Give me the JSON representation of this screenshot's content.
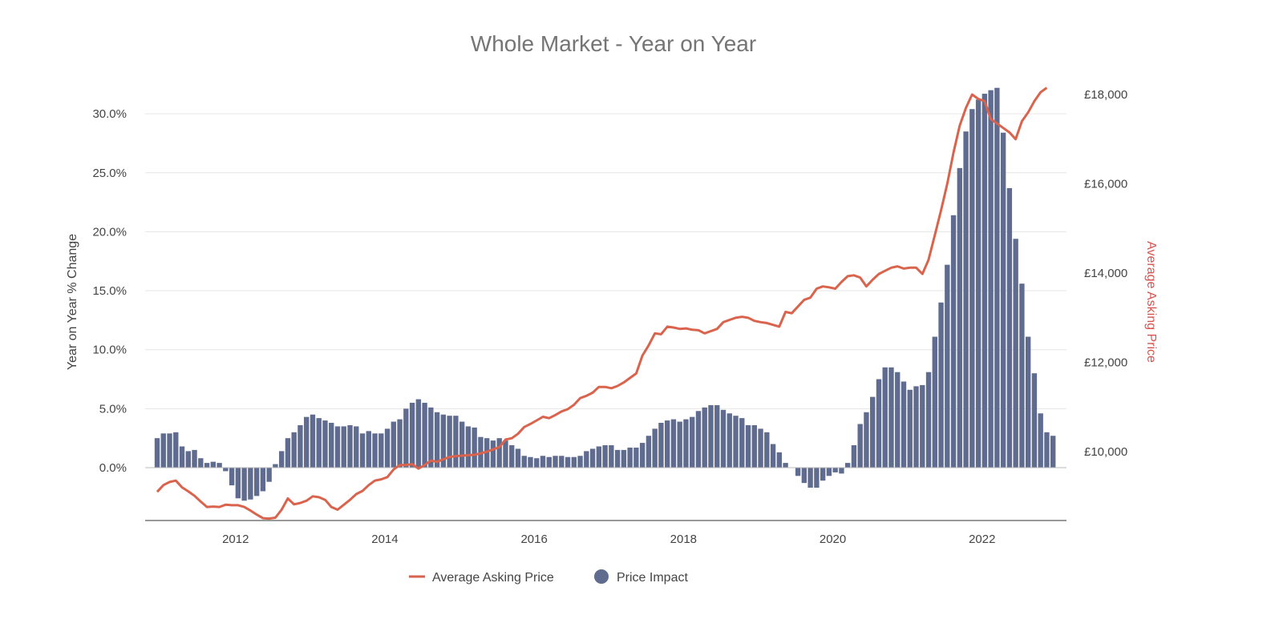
{
  "chart_data": {
    "type": "bar+line",
    "title": "Whole Market - Year on Year",
    "ylabel_left": "Year on Year % Change",
    "ylabel_right": "Average Asking Price",
    "yticks_left": [
      "0.0%",
      "5.0%",
      "10.0%",
      "15.0%",
      "20.0%",
      "25.0%",
      "30.0%"
    ],
    "yticks_right": [
      "£10,000",
      "£12,000",
      "£14,000",
      "£16,000",
      "£18,000"
    ],
    "xticks": [
      "2012",
      "2014",
      "2016",
      "2018",
      "2020",
      "2022"
    ],
    "ylim_left": [
      -4.5,
      31.5
    ],
    "ylim_right": [
      8500,
      18000
    ],
    "grid": true,
    "legend_position": "bottom",
    "colors": {
      "bars": "#5f6b8f",
      "line": "#d9634d",
      "right_axis_label": "#d9534f"
    },
    "series": [
      {
        "name": "Average Asking Price",
        "kind": "line",
        "axis": "right",
        "points": [
          [
            "2011-01",
            9100
          ],
          [
            "2011-02",
            9250
          ],
          [
            "2011-03",
            9320
          ],
          [
            "2011-04",
            9350
          ],
          [
            "2011-05",
            9200
          ],
          [
            "2011-06",
            9110
          ],
          [
            "2011-07",
            9010
          ],
          [
            "2011-08",
            8880
          ],
          [
            "2011-09",
            8760
          ],
          [
            "2011-10",
            8770
          ],
          [
            "2011-11",
            8760
          ],
          [
            "2011-12",
            8810
          ],
          [
            "2012-01",
            8800
          ],
          [
            "2012-02",
            8800
          ],
          [
            "2012-03",
            8760
          ],
          [
            "2012-04",
            8680
          ],
          [
            "2012-05",
            8590
          ],
          [
            "2012-06",
            8510
          ],
          [
            "2012-07",
            8500
          ],
          [
            "2012-08",
            8520
          ],
          [
            "2012-09",
            8700
          ],
          [
            "2012-10",
            8950
          ],
          [
            "2012-11",
            8820
          ],
          [
            "2012-12",
            8850
          ],
          [
            "2013-01",
            8900
          ],
          [
            "2013-02",
            9000
          ],
          [
            "2013-03",
            8980
          ],
          [
            "2013-04",
            8920
          ],
          [
            "2013-05",
            8760
          ],
          [
            "2013-06",
            8700
          ],
          [
            "2013-07",
            8810
          ],
          [
            "2013-08",
            8920
          ],
          [
            "2013-09",
            9050
          ],
          [
            "2013-10",
            9120
          ],
          [
            "2013-11",
            9250
          ],
          [
            "2013-12",
            9350
          ],
          [
            "2014-01",
            9380
          ],
          [
            "2014-02",
            9430
          ],
          [
            "2014-03",
            9600
          ],
          [
            "2014-04",
            9700
          ],
          [
            "2014-05",
            9700
          ],
          [
            "2014-06",
            9720
          ],
          [
            "2014-07",
            9620
          ],
          [
            "2014-08",
            9700
          ],
          [
            "2014-09",
            9800
          ],
          [
            "2014-10",
            9770
          ],
          [
            "2014-11",
            9830
          ],
          [
            "2014-12",
            9880
          ],
          [
            "2015-01",
            9900
          ],
          [
            "2015-02",
            9910
          ],
          [
            "2015-03",
            9920
          ],
          [
            "2015-04",
            9930
          ],
          [
            "2015-05",
            9960
          ],
          [
            "2015-06",
            10000
          ],
          [
            "2015-07",
            10050
          ],
          [
            "2015-08",
            10100
          ],
          [
            "2015-09",
            10270
          ],
          [
            "2015-10",
            10300
          ],
          [
            "2015-11",
            10400
          ],
          [
            "2015-12",
            10550
          ],
          [
            "2016-01",
            10620
          ],
          [
            "2016-02",
            10700
          ],
          [
            "2016-03",
            10780
          ],
          [
            "2016-04",
            10750
          ],
          [
            "2016-05",
            10820
          ],
          [
            "2016-06",
            10900
          ],
          [
            "2016-07",
            10950
          ],
          [
            "2016-08",
            11050
          ],
          [
            "2016-09",
            11200
          ],
          [
            "2016-10",
            11250
          ],
          [
            "2016-11",
            11320
          ],
          [
            "2016-12",
            11450
          ],
          [
            "2017-01",
            11450
          ],
          [
            "2017-02",
            11420
          ],
          [
            "2017-03",
            11470
          ],
          [
            "2017-04",
            11550
          ],
          [
            "2017-05",
            11650
          ],
          [
            "2017-06",
            11750
          ],
          [
            "2017-07",
            12150
          ],
          [
            "2017-08",
            12380
          ],
          [
            "2017-09",
            12650
          ],
          [
            "2017-10",
            12630
          ],
          [
            "2017-11",
            12800
          ],
          [
            "2017-12",
            12780
          ],
          [
            "2018-01",
            12750
          ],
          [
            "2018-02",
            12760
          ],
          [
            "2018-03",
            12730
          ],
          [
            "2018-04",
            12720
          ],
          [
            "2018-05",
            12650
          ],
          [
            "2018-06",
            12700
          ],
          [
            "2018-07",
            12750
          ],
          [
            "2018-08",
            12900
          ],
          [
            "2018-09",
            12950
          ],
          [
            "2018-10",
            13000
          ],
          [
            "2018-11",
            13020
          ],
          [
            "2018-12",
            13000
          ],
          [
            "2019-01",
            12930
          ],
          [
            "2019-02",
            12900
          ],
          [
            "2019-03",
            12880
          ],
          [
            "2019-04",
            12840
          ],
          [
            "2019-05",
            12800
          ],
          [
            "2019-06",
            13130
          ],
          [
            "2019-07",
            13100
          ],
          [
            "2019-08",
            13250
          ],
          [
            "2019-09",
            13400
          ],
          [
            "2019-10",
            13450
          ],
          [
            "2019-11",
            13650
          ],
          [
            "2019-12",
            13700
          ],
          [
            "2020-01",
            13680
          ],
          [
            "2020-02",
            13650
          ],
          [
            "2020-03",
            13800
          ],
          [
            "2020-04",
            13930
          ],
          [
            "2020-05",
            13950
          ],
          [
            "2020-06",
            13900
          ],
          [
            "2020-07",
            13700
          ],
          [
            "2020-08",
            13850
          ],
          [
            "2020-09",
            13980
          ],
          [
            "2020-10",
            14050
          ],
          [
            "2020-11",
            14120
          ],
          [
            "2020-12",
            14150
          ],
          [
            "2021-01",
            14100
          ],
          [
            "2021-02",
            14120
          ],
          [
            "2021-03",
            14120
          ],
          [
            "2021-04",
            13980
          ],
          [
            "2021-05",
            14300
          ],
          [
            "2021-06",
            14850
          ],
          [
            "2021-07",
            15400
          ],
          [
            "2021-08",
            16000
          ],
          [
            "2021-09",
            16700
          ],
          [
            "2021-10",
            17300
          ],
          [
            "2021-11",
            17700
          ],
          [
            "2021-12",
            18000
          ],
          [
            "2022-01",
            17900
          ],
          [
            "2022-02",
            17850
          ],
          [
            "2022-03",
            17450
          ],
          [
            "2022-04",
            17350
          ],
          [
            "2022-05",
            17250
          ],
          [
            "2022-06",
            17150
          ],
          [
            "2022-07",
            17000
          ],
          [
            "2022-08",
            17400
          ],
          [
            "2022-09",
            17600
          ],
          [
            "2022-10",
            17850
          ],
          [
            "2022-11",
            18050
          ],
          [
            "2022-12",
            18150
          ]
        ]
      },
      {
        "name": "Price Impact",
        "kind": "bar",
        "axis": "left",
        "points": [
          [
            "2011-01",
            2.5
          ],
          [
            "2011-02",
            2.9
          ],
          [
            "2011-03",
            2.9
          ],
          [
            "2011-04",
            3.0
          ],
          [
            "2011-05",
            1.8
          ],
          [
            "2011-06",
            1.4
          ],
          [
            "2011-07",
            1.5
          ],
          [
            "2011-08",
            0.8
          ],
          [
            "2011-09",
            0.4
          ],
          [
            "2011-10",
            0.5
          ],
          [
            "2011-11",
            0.4
          ],
          [
            "2011-12",
            -0.3
          ],
          [
            "2012-01",
            -1.5
          ],
          [
            "2012-02",
            -2.6
          ],
          [
            "2012-03",
            -2.8
          ],
          [
            "2012-04",
            -2.7
          ],
          [
            "2012-05",
            -2.4
          ],
          [
            "2012-06",
            -2.0
          ],
          [
            "2012-07",
            -1.2
          ],
          [
            "2012-08",
            0.3
          ],
          [
            "2012-09",
            1.4
          ],
          [
            "2012-10",
            2.5
          ],
          [
            "2012-11",
            3.0
          ],
          [
            "2012-12",
            3.6
          ],
          [
            "2013-01",
            4.3
          ],
          [
            "2013-02",
            4.5
          ],
          [
            "2013-03",
            4.2
          ],
          [
            "2013-04",
            4.0
          ],
          [
            "2013-05",
            3.8
          ],
          [
            "2013-06",
            3.5
          ],
          [
            "2013-07",
            3.5
          ],
          [
            "2013-08",
            3.6
          ],
          [
            "2013-09",
            3.5
          ],
          [
            "2013-10",
            2.9
          ],
          [
            "2013-11",
            3.1
          ],
          [
            "2013-12",
            2.9
          ],
          [
            "2014-01",
            2.9
          ],
          [
            "2014-02",
            3.3
          ],
          [
            "2014-03",
            3.9
          ],
          [
            "2014-04",
            4.1
          ],
          [
            "2014-05",
            5.0
          ],
          [
            "2014-06",
            5.5
          ],
          [
            "2014-07",
            5.8
          ],
          [
            "2014-08",
            5.5
          ],
          [
            "2014-09",
            5.1
          ],
          [
            "2014-10",
            4.7
          ],
          [
            "2014-11",
            4.5
          ],
          [
            "2014-12",
            4.4
          ],
          [
            "2015-01",
            4.4
          ],
          [
            "2015-02",
            3.9
          ],
          [
            "2015-03",
            3.5
          ],
          [
            "2015-04",
            3.4
          ],
          [
            "2015-05",
            2.6
          ],
          [
            "2015-06",
            2.5
          ],
          [
            "2015-07",
            2.3
          ],
          [
            "2015-08",
            2.5
          ],
          [
            "2015-09",
            2.3
          ],
          [
            "2015-10",
            1.9
          ],
          [
            "2015-11",
            1.6
          ],
          [
            "2015-12",
            1.0
          ],
          [
            "2016-01",
            0.9
          ],
          [
            "2016-02",
            0.8
          ],
          [
            "2016-03",
            1.0
          ],
          [
            "2016-04",
            0.9
          ],
          [
            "2016-05",
            1.0
          ],
          [
            "2016-06",
            1.0
          ],
          [
            "2016-07",
            0.9
          ],
          [
            "2016-08",
            0.9
          ],
          [
            "2016-09",
            1.0
          ],
          [
            "2016-10",
            1.4
          ],
          [
            "2016-11",
            1.6
          ],
          [
            "2016-12",
            1.8
          ],
          [
            "2017-01",
            1.9
          ],
          [
            "2017-02",
            1.9
          ],
          [
            "2017-03",
            1.5
          ],
          [
            "2017-04",
            1.5
          ],
          [
            "2017-05",
            1.7
          ],
          [
            "2017-06",
            1.7
          ],
          [
            "2017-07",
            2.1
          ],
          [
            "2017-08",
            2.7
          ],
          [
            "2017-09",
            3.3
          ],
          [
            "2017-10",
            3.8
          ],
          [
            "2017-11",
            4.0
          ],
          [
            "2017-12",
            4.1
          ],
          [
            "2018-01",
            3.9
          ],
          [
            "2018-02",
            4.1
          ],
          [
            "2018-03",
            4.3
          ],
          [
            "2018-04",
            4.8
          ],
          [
            "2018-05",
            5.1
          ],
          [
            "2018-06",
            5.3
          ],
          [
            "2018-07",
            5.3
          ],
          [
            "2018-08",
            4.9
          ],
          [
            "2018-09",
            4.6
          ],
          [
            "2018-10",
            4.4
          ],
          [
            "2018-11",
            4.2
          ],
          [
            "2018-12",
            3.6
          ],
          [
            "2019-01",
            3.6
          ],
          [
            "2019-02",
            3.3
          ],
          [
            "2019-03",
            3.0
          ],
          [
            "2019-04",
            2.0
          ],
          [
            "2019-05",
            1.3
          ],
          [
            "2019-06",
            0.4
          ],
          [
            "2019-07",
            0.0
          ],
          [
            "2019-08",
            -0.7
          ],
          [
            "2019-09",
            -1.3
          ],
          [
            "2019-10",
            -1.7
          ],
          [
            "2019-11",
            -1.7
          ],
          [
            "2019-12",
            -1.1
          ],
          [
            "2020-01",
            -0.7
          ],
          [
            "2020-02",
            -0.4
          ],
          [
            "2020-03",
            -0.5
          ],
          [
            "2020-04",
            0.4
          ],
          [
            "2020-05",
            1.9
          ],
          [
            "2020-06",
            3.7
          ],
          [
            "2020-07",
            4.7
          ],
          [
            "2020-08",
            6.0
          ],
          [
            "2020-09",
            7.5
          ],
          [
            "2020-10",
            8.5
          ],
          [
            "2020-11",
            8.5
          ],
          [
            "2020-12",
            8.1
          ],
          [
            "2021-01",
            7.3
          ],
          [
            "2021-02",
            6.6
          ],
          [
            "2021-03",
            6.9
          ],
          [
            "2021-04",
            7.0
          ],
          [
            "2021-05",
            8.1
          ],
          [
            "2021-06",
            11.1
          ],
          [
            "2021-07",
            14.0
          ],
          [
            "2021-08",
            17.2
          ],
          [
            "2021-09",
            21.4
          ],
          [
            "2021-10",
            25.4
          ],
          [
            "2021-11",
            28.5
          ],
          [
            "2021-12",
            30.4
          ],
          [
            "2022-01",
            31.2
          ],
          [
            "2022-02",
            31.7
          ],
          [
            "2022-03",
            32.0
          ],
          [
            "2022-04",
            32.2
          ],
          [
            "2022-05",
            28.4
          ],
          [
            "2022-06",
            23.7
          ],
          [
            "2022-07",
            19.4
          ],
          [
            "2022-08",
            15.6
          ],
          [
            "2022-09",
            11.1
          ],
          [
            "2022-10",
            8.0
          ],
          [
            "2022-11",
            4.6
          ],
          [
            "2022-12",
            3.0
          ],
          [
            "2023-01",
            2.7
          ]
        ]
      }
    ]
  }
}
